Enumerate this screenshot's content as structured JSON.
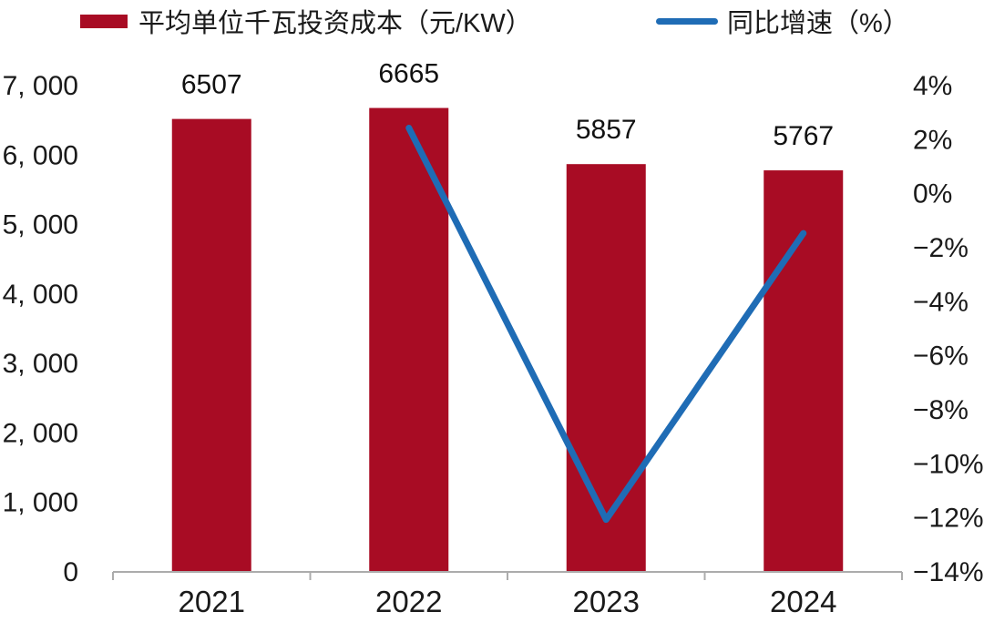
{
  "chart_data": {
    "type": "bar+line",
    "title": "",
    "categories": [
      "2021",
      "2022",
      "2023",
      "2024"
    ],
    "series": [
      {
        "name": "平均单位千瓦投资成本（元/KW）",
        "type": "bar",
        "axis": "left",
        "color": "#A80C24",
        "values": [
          6507,
          6665,
          5857,
          5767
        ],
        "data_labels": [
          "6507",
          "6665",
          "5857",
          "5767"
        ]
      },
      {
        "name": "同比增速（%）",
        "type": "line",
        "axis": "right",
        "color": "#1F6CB5",
        "values": [
          null,
          2.4,
          -12.1,
          -1.5
        ]
      }
    ],
    "left_axis": {
      "min": 0,
      "max": 7000,
      "step": 1000,
      "labels": [
        "0",
        "1, 000",
        "2, 000",
        "3, 000",
        "4, 000",
        "5, 000",
        "6, 000",
        "7, 000"
      ]
    },
    "right_axis": {
      "min": -14,
      "max": 4,
      "step": 2,
      "labels": [
        "−14%",
        "−12%",
        "−10%",
        "−8%",
        "−6%",
        "−4%",
        "−2%",
        "0%",
        "2%",
        "4%"
      ]
    },
    "legend_position": "top",
    "grid": false,
    "colors": {
      "axis_line": "#ACACAC",
      "text": "#1A1A1A"
    }
  }
}
